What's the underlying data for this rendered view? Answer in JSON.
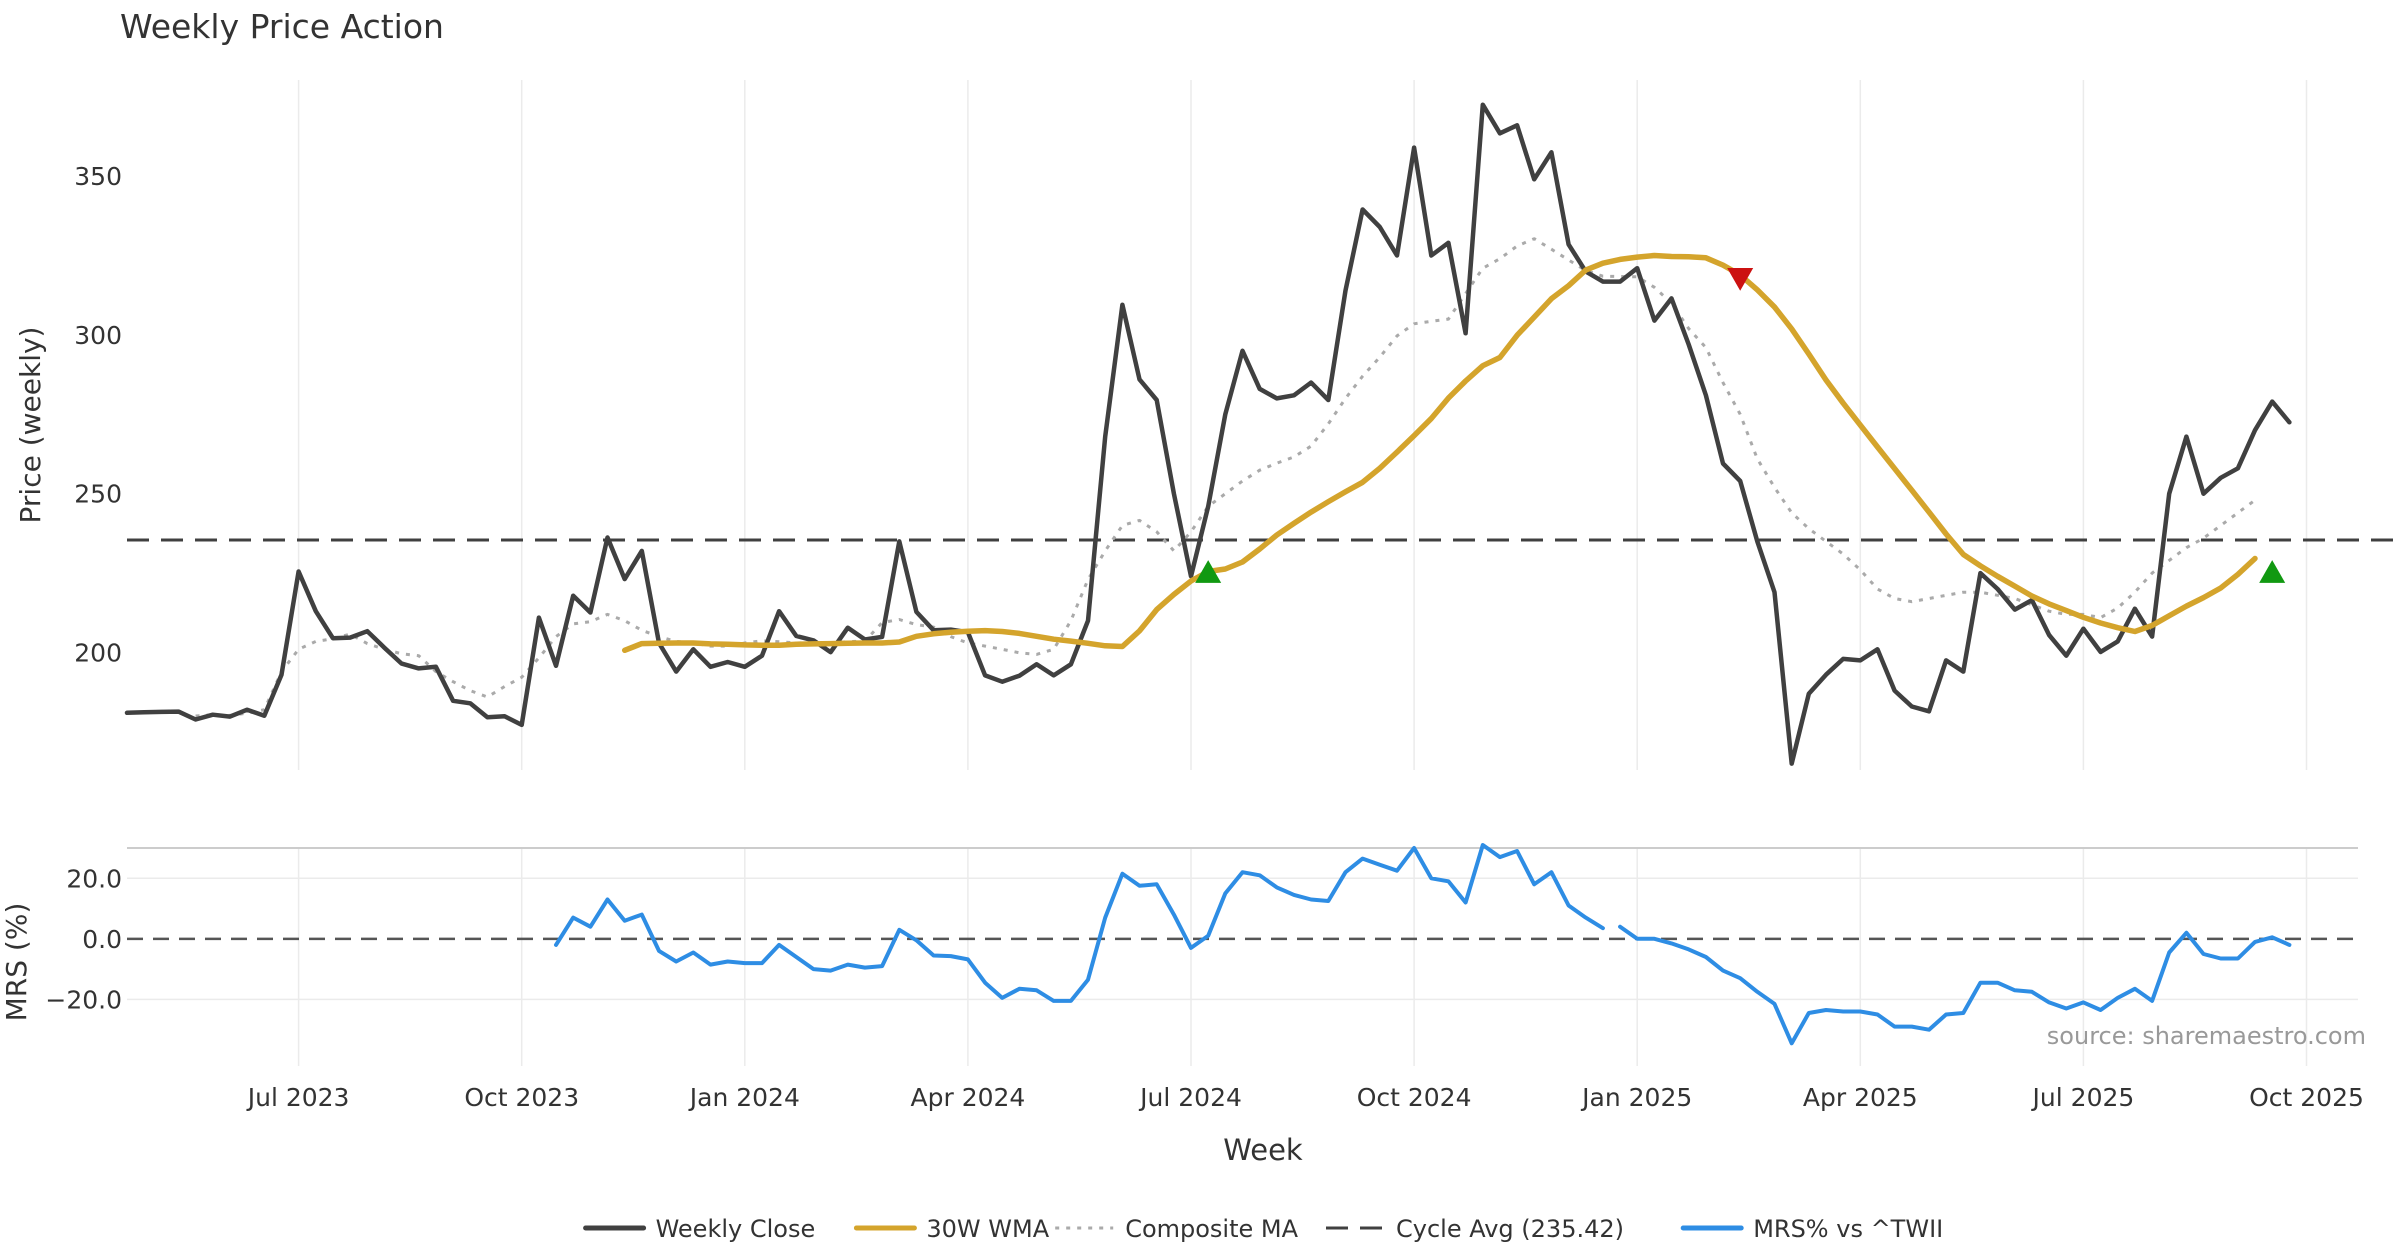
{
  "chart_data": {
    "type": "line",
    "title": "Weekly Price Action",
    "xlabel": "Week",
    "source_note": "source: sharemaestro.com",
    "x_ticks": [
      "Jul 2023",
      "Oct 2023",
      "Jan 2024",
      "Apr 2024",
      "Jul 2024",
      "Oct 2024",
      "Jan 2025",
      "Apr 2025",
      "Jul 2025",
      "Oct 2025"
    ],
    "x_tick_weeks": [
      10,
      23,
      36,
      49,
      62,
      75,
      88,
      101,
      114,
      127
    ],
    "x_range_weeks": [
      0,
      130
    ],
    "price_panel": {
      "ylabel": "Price (weekly)",
      "ylim": [
        163,
        385
      ],
      "y_ticks": [
        200,
        250,
        300,
        350
      ],
      "grid": true
    },
    "mrs_panel": {
      "ylabel": "MRS (%)",
      "ylim": [
        -42,
        30
      ],
      "y_ticks": [
        20,
        0,
        -20
      ],
      "y_tick_labels": [
        "20.0",
        "0.0",
        "−20.0"
      ],
      "grid": true
    },
    "series": [
      {
        "name": "Weekly Close",
        "color": "#404040",
        "style": "solid",
        "panel": "price",
        "x_start": 0,
        "values": [
          181.0,
          181.2,
          181.3,
          181.4,
          178.9,
          180.4,
          179.8,
          182.0,
          180.1,
          193.0,
          225.5,
          213.0,
          204.5,
          204.7,
          206.7,
          201.5,
          196.5,
          195.0,
          195.5,
          184.8,
          184.0,
          179.6,
          179.9,
          177.2,
          211.0,
          195.8,
          217.9,
          212.6,
          236.2,
          223.1,
          232.0,
          203.0,
          194.0,
          201.0,
          195.5,
          197.0,
          195.5,
          199.0,
          213.0,
          205.2,
          203.8,
          200.1,
          207.8,
          204.1,
          204.9,
          235.0,
          212.8,
          207.0,
          207.2,
          206.4,
          192.8,
          190.8,
          192.7,
          196.3,
          192.8,
          196.3,
          210.0,
          268.0,
          309.5,
          286.0,
          279.5,
          250.0,
          224.0,
          246.0,
          275.0,
          295.0,
          283.0,
          280.0,
          281.0,
          285.0,
          279.5,
          314.0,
          339.5,
          334.0,
          325.0,
          359.0,
          325.0,
          329.0,
          300.5,
          372.5,
          363.5,
          366.0,
          349.0,
          357.5,
          328.5,
          320.0,
          316.8,
          316.8,
          321.0,
          304.5,
          311.5,
          297.0,
          281.0,
          259.5,
          254.0,
          235.0,
          219.0,
          165.0,
          187.0,
          193.0,
          198.0,
          197.5,
          201.0,
          188.0,
          183.0,
          181.5,
          197.5,
          194.0,
          225.0,
          220.0,
          213.5,
          216.5,
          205.5,
          199.0,
          207.5,
          200.2,
          203.5,
          213.8,
          205.0,
          250.0,
          268.0,
          250.0,
          255.0,
          258.0,
          270.0,
          279.0,
          272.5
        ]
      },
      {
        "name": "30W WMA",
        "color": "#d4a42c",
        "style": "solid",
        "panel": "price",
        "x_start": 29,
        "values": [
          200.7,
          202.8,
          202.9,
          203.0,
          203.0,
          202.7,
          202.6,
          202.4,
          202.3,
          202.3,
          202.6,
          202.7,
          202.8,
          202.9,
          203.0,
          203.0,
          203.3,
          205.1,
          205.9,
          206.4,
          206.7,
          206.9,
          206.6,
          206.0,
          205.1,
          204.2,
          203.6,
          202.9,
          202.1,
          201.9,
          206.8,
          213.5,
          218.3,
          222.5,
          225.5,
          226.3,
          228.5,
          232.6,
          237.0,
          240.7,
          244.2,
          247.5,
          250.6,
          253.6,
          258.0,
          263.1,
          268.3,
          273.7,
          280.1,
          285.5,
          290.3,
          292.9,
          299.9,
          305.6,
          311.4,
          315.5,
          320.4,
          322.6,
          323.8,
          324.5,
          325.0,
          324.7,
          324.6,
          324.3,
          322.0,
          318.9,
          314.2,
          308.8,
          301.9,
          294.0,
          285.8,
          278.5,
          271.6,
          264.7,
          257.9,
          251.1,
          244.2,
          237.3,
          230.9,
          227.3,
          224.0,
          220.9,
          217.8,
          215.3,
          213.2,
          211.1,
          209.3,
          207.8,
          206.6,
          208.5,
          211.6,
          214.6,
          217.3,
          220.3,
          224.6,
          229.6
        ]
      },
      {
        "name": "Composite MA",
        "color": "#aaaaaa",
        "style": "dotted",
        "panel": "price",
        "x_start": 4,
        "values": [
          180.0,
          180.4,
          180.2,
          180.9,
          182.0,
          194.0,
          201.0,
          203.5,
          204.3,
          205.8,
          202.8,
          201.0,
          199.6,
          199.0,
          194.0,
          190.8,
          188.0,
          186.0,
          189.3,
          192.2,
          198.3,
          205.0,
          209.0,
          209.7,
          212.0,
          210.0,
          207.0,
          205.0,
          203.5,
          203.0,
          202.0,
          202.0,
          203.0,
          203.7,
          203.4,
          203.0,
          203.1,
          203.0,
          203.4,
          203.6,
          209.4,
          210.4,
          208.8,
          208.0,
          205.0,
          203.0,
          202.0,
          201.0,
          199.9,
          199.4,
          201.0,
          210.0,
          223.0,
          232.0,
          240.0,
          241.6,
          238.0,
          232.0,
          238.0,
          246.0,
          250.0,
          254.0,
          257.4,
          259.6,
          261.6,
          265.0,
          272.0,
          280.0,
          287.0,
          293.0,
          299.7,
          303.5,
          304.3,
          305.0,
          313.0,
          321.0,
          324.0,
          328.0,
          330.3,
          327.0,
          323.6,
          320.3,
          318.5,
          318.4,
          318.3,
          315.0,
          310.0,
          302.0,
          296.0,
          285.0,
          275.0,
          261.0,
          252.0,
          244.0,
          239.0,
          235.0,
          231.0,
          226.0,
          220.0,
          217.0,
          216.0,
          217.0,
          218.0,
          219.0,
          219.0,
          218.0,
          217.0,
          215.0,
          213.0,
          212.0,
          212.0,
          211.0,
          214.0,
          219.0,
          225.0,
          229.0,
          233.0,
          236.0,
          240.0,
          244.0,
          248.0
        ]
      },
      {
        "name": "Cycle Avg (235.42)",
        "color": "#404040",
        "style": "dashed",
        "panel": "price",
        "constant": 235.42
      },
      {
        "name": "MRS% vs ^TWII",
        "color": "#2e8de4",
        "style": "solid",
        "panel": "mrs",
        "segments": [
          {
            "x_start": 25,
            "values": [
              -2.0,
              7.0,
              4.0,
              13.0,
              6.0,
              8.0,
              -4.0,
              -7.5,
              -4.5,
              -8.5,
              -7.5,
              -8.0,
              -8.0,
              -2.0,
              -6.0,
              -10.0,
              -10.5,
              -8.5,
              -9.5,
              -9.0,
              3.0,
              -0.5,
              -5.5,
              -5.7,
              -6.8,
              -14.5,
              -19.5,
              -16.5,
              -17.0,
              -20.5,
              -20.5,
              -13.5,
              7.0,
              21.5,
              17.5,
              18.0,
              8.0,
              -3.0,
              1.0,
              15.0,
              22.0,
              21.0,
              17.0,
              14.5,
              13.0,
              12.5,
              22.0,
              26.5,
              24.5,
              22.5,
              30.0,
              20.0,
              19.0,
              12.0,
              31.0,
              27.0,
              29.0,
              18.0,
              22.0,
              11.0,
              7.0,
              3.5
            ]
          },
          {
            "x_start": 87,
            "values": [
              4.0,
              0.0,
              0.0,
              -1.5,
              -3.5,
              -6.0,
              -10.5,
              -13.0,
              -17.5,
              -21.5,
              -34.5,
              -24.5,
              -23.5,
              -24.0,
              -24.0,
              -25.0,
              -29.0,
              -29.0,
              -30.0,
              -25.0,
              -24.5,
              -14.5,
              -14.5,
              -17.0,
              -17.5,
              -21.0,
              -23.0,
              -21.0,
              -23.5,
              -19.5,
              -16.5,
              -20.5,
              -4.5,
              2.0,
              -5.0,
              -6.5,
              -6.5,
              -1.0,
              0.5,
              -2.0
            ]
          }
        ]
      }
    ],
    "markers": [
      {
        "type": "buy",
        "shape": "triangle-up",
        "color": "#119911",
        "week": 63,
        "value": 225
      },
      {
        "type": "sell",
        "shape": "triangle-down",
        "color": "#cc1111",
        "week": 94,
        "value": 318
      },
      {
        "type": "buy",
        "shape": "triangle-up",
        "color": "#119911",
        "week": 125,
        "value": 225
      }
    ],
    "legend": {
      "placement": "bottom-center",
      "entries": [
        "Weekly Close",
        "30W WMA",
        "Composite MA",
        "Cycle Avg (235.42)",
        "MRS% vs ^TWII"
      ]
    }
  }
}
